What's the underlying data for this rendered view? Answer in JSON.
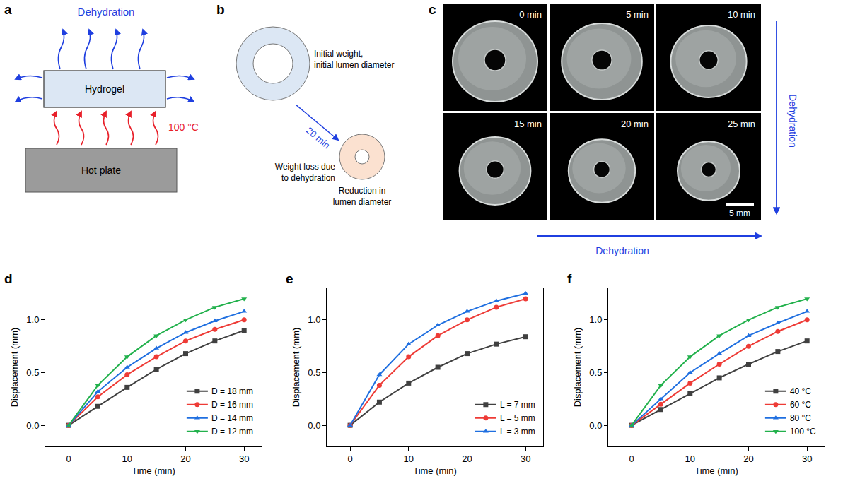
{
  "diagrams": {
    "a": {
      "label": "a",
      "dehydration": "Dehydration",
      "hydrogel": "Hydrogel",
      "temperature": "100 °C",
      "hot_plate": "Hot plate"
    },
    "b": {
      "label": "b",
      "initial": [
        "Initial weight,",
        "initial lumen diameter"
      ],
      "time": "20 min",
      "weight_loss": [
        "Weight loss due",
        "to dehydration"
      ],
      "reduction": [
        "Reduction in",
        "lumen diameter"
      ]
    },
    "c": {
      "label": "c",
      "frames": [
        "0 min",
        "5 min",
        "10 min",
        "15 min",
        "20 min",
        "25 min"
      ],
      "scale_bar": "5 mm",
      "row_arrow": "Dehydration",
      "column_arrow": "Dehydration"
    }
  },
  "chart_data": [
    {
      "type": "line",
      "title": "d",
      "x_label": "Time (min)",
      "y_label": "Displacement (mm)",
      "x": [
        0,
        5,
        10,
        15,
        20,
        25,
        30
      ],
      "xlim": [
        -4,
        33
      ],
      "xticks": [
        0,
        10,
        20,
        30
      ],
      "ylim": [
        -0.2,
        1.3
      ],
      "yticks": [
        {
          "value": 0,
          "label": "0.0"
        },
        {
          "value": 0.5,
          "label": "0.5"
        },
        {
          "value": 1,
          "label": "1.0"
        }
      ],
      "grid": false,
      "legend": "lower right",
      "series": [
        {
          "name": "D = 18 mm",
          "color": "#404040",
          "marker": "square",
          "values": [
            0,
            0.18,
            0.36,
            0.53,
            0.68,
            0.8,
            0.9
          ]
        },
        {
          "name": "D = 16 mm",
          "color": "#ee3b36",
          "marker": "circle",
          "values": [
            0,
            0.27,
            0.48,
            0.65,
            0.8,
            0.91,
            1.0
          ]
        },
        {
          "name": "D = 14 mm",
          "color": "#1f6fe0",
          "marker": "triangle-up",
          "values": [
            0,
            0.32,
            0.55,
            0.73,
            0.88,
            0.99,
            1.08
          ]
        },
        {
          "name": "D = 12 mm",
          "color": "#22b14c",
          "marker": "triangle-down",
          "values": [
            0,
            0.38,
            0.65,
            0.85,
            1.0,
            1.12,
            1.2
          ]
        }
      ]
    },
    {
      "type": "line",
      "title": "e",
      "x_label": "Time (min)",
      "y_label": "Displacement (mm)",
      "x": [
        0,
        5,
        10,
        15,
        20,
        25,
        30
      ],
      "xlim": [
        -4,
        33
      ],
      "xticks": [
        0,
        10,
        20,
        30
      ],
      "ylim": [
        -0.2,
        1.3
      ],
      "yticks": [
        {
          "value": 0,
          "label": "0.0"
        },
        {
          "value": 0.5,
          "label": "0.5"
        },
        {
          "value": 1,
          "label": "1.0"
        }
      ],
      "grid": false,
      "legend": "lower right",
      "series": [
        {
          "name": "L = 7 mm",
          "color": "#404040",
          "marker": "square",
          "values": [
            0,
            0.22,
            0.4,
            0.55,
            0.68,
            0.77,
            0.84
          ]
        },
        {
          "name": "L = 5 mm",
          "color": "#ee3b36",
          "marker": "circle",
          "values": [
            0,
            0.38,
            0.65,
            0.85,
            1.0,
            1.12,
            1.2
          ]
        },
        {
          "name": "L = 3 mm",
          "color": "#1f6fe0",
          "marker": "triangle-up",
          "values": [
            0,
            0.48,
            0.77,
            0.95,
            1.08,
            1.18,
            1.25
          ]
        }
      ]
    },
    {
      "type": "line",
      "title": "f",
      "x_label": "Time (min)",
      "y_label": "Displacement (mm)",
      "x": [
        0,
        5,
        10,
        15,
        20,
        25,
        30
      ],
      "xlim": [
        -4,
        33
      ],
      "xticks": [
        0,
        10,
        20,
        30
      ],
      "ylim": [
        -0.2,
        1.3
      ],
      "yticks": [
        {
          "value": 0,
          "label": "0.0"
        },
        {
          "value": 0.5,
          "label": "0.5"
        },
        {
          "value": 1,
          "label": "1.0"
        }
      ],
      "grid": false,
      "legend": "lower right",
      "series": [
        {
          "name": "40 °C",
          "color": "#404040",
          "marker": "square",
          "values": [
            0,
            0.15,
            0.3,
            0.45,
            0.58,
            0.7,
            0.8
          ]
        },
        {
          "name": "60 °C",
          "color": "#ee3b36",
          "marker": "circle",
          "values": [
            0,
            0.2,
            0.4,
            0.58,
            0.75,
            0.89,
            1.0
          ]
        },
        {
          "name": "80 °C",
          "color": "#1f6fe0",
          "marker": "triangle-up",
          "values": [
            0,
            0.25,
            0.5,
            0.68,
            0.85,
            0.97,
            1.08
          ]
        },
        {
          "name": "100 °C",
          "color": "#22b14c",
          "marker": "triangle-down",
          "values": [
            0,
            0.38,
            0.65,
            0.85,
            1.0,
            1.12,
            1.2
          ]
        }
      ]
    }
  ]
}
